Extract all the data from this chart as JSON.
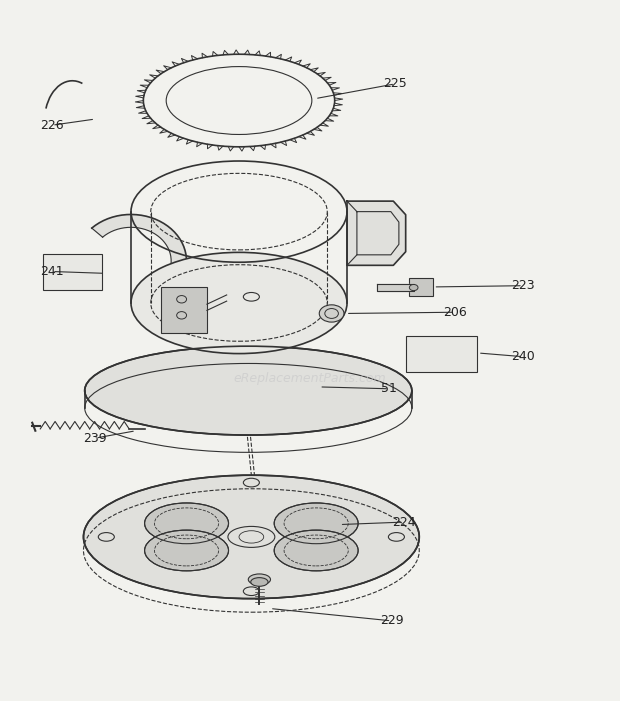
{
  "background_color": "#f2f2ee",
  "line_color": "#333333",
  "watermark_text": "eReplacementParts.com",
  "watermark_color": "#cccccc",
  "title": ""
}
